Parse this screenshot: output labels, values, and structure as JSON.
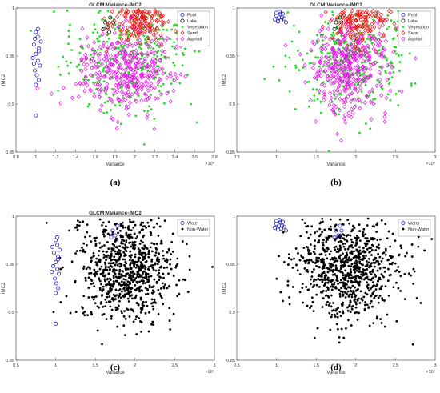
{
  "captions": [
    "(a)",
    "(b)",
    "(c)",
    "(d)"
  ],
  "chart_data": [
    {
      "type": "scatter",
      "title": "GLCM:Variance-IMC2",
      "xlabel": "Variance",
      "ylabel": "IMC2",
      "x_multiplier": "×10⁴",
      "xlim": [
        0.8,
        2.8
      ],
      "ylim": [
        0.85,
        1.0
      ],
      "xticks": [
        "0.8",
        "1",
        "1.2",
        "1.4",
        "1.6",
        "1.8",
        "2",
        "2.2",
        "2.4",
        "2.6",
        "2.8"
      ],
      "yticks": [
        "0.85",
        "0.9",
        "0.95",
        "1"
      ],
      "legend_position": "top-right",
      "series": [
        {
          "name": "Pool",
          "marker": "circle",
          "color": "#1f1fd0",
          "points": [
            [
              1.0,
              0.975
            ],
            [
              1.02,
              0.97
            ],
            [
              0.98,
              0.962
            ],
            [
              1.03,
              0.958
            ],
            [
              1.0,
              0.952
            ],
            [
              0.97,
              0.948
            ],
            [
              1.02,
              0.945
            ],
            [
              1.04,
              0.94
            ],
            [
              0.99,
              0.935
            ],
            [
              1.01,
              0.93
            ],
            [
              1.03,
              0.925
            ],
            [
              1.0,
              0.92
            ],
            [
              0.98,
              0.942
            ],
            [
              1.05,
              0.965
            ],
            [
              1.02,
              0.978
            ],
            [
              1.0,
              0.888
            ],
            [
              1.03,
              0.955
            ],
            [
              0.99,
              0.968
            ]
          ]
        },
        {
          "name": "Lake",
          "marker": "circle",
          "color": "#111111",
          "points": [
            [
              1.7,
              0.985
            ],
            [
              1.72,
              0.98
            ],
            [
              1.75,
              0.99
            ],
            [
              1.78,
              0.985
            ],
            [
              1.68,
              0.978
            ],
            [
              1.74,
              0.975
            ]
          ]
        },
        {
          "name": "Vegetation",
          "marker": "dot",
          "color": "#22dd22",
          "center": [
            1.95,
            0.945
          ],
          "spread": [
            0.3,
            0.025
          ],
          "count": 320
        },
        {
          "name": "Sand",
          "marker": "diamond",
          "color": "#ee1111",
          "center": [
            2.05,
            0.985
          ],
          "spread": [
            0.15,
            0.012
          ],
          "count": 150
        },
        {
          "name": "Asphalt",
          "marker": "diamond",
          "color": "#ee11ee",
          "center": [
            1.9,
            0.935
          ],
          "spread": [
            0.22,
            0.022
          ],
          "count": 360
        }
      ]
    },
    {
      "type": "scatter",
      "title": "GLCM:Variance-IMC2",
      "xlabel": "Variance",
      "ylabel": "IMC2",
      "x_multiplier": "×10⁴",
      "xlim": [
        0.5,
        3.0
      ],
      "ylim": [
        0.85,
        1.0
      ],
      "xticks": [
        "0.5",
        "1",
        "1.5",
        "2",
        "2.5",
        "3"
      ],
      "yticks": [
        "0.85",
        "0.9",
        "0.95",
        "1"
      ],
      "legend_position": "top-right",
      "series": [
        {
          "name": "Pool",
          "marker": "circle",
          "color": "#1f1fd0",
          "points": [
            [
              1.0,
              0.992
            ],
            [
              1.03,
              0.99
            ],
            [
              1.05,
              0.994
            ],
            [
              1.07,
              0.99
            ],
            [
              0.98,
              0.988
            ],
            [
              1.02,
              0.986
            ],
            [
              1.06,
              0.987
            ],
            [
              1.1,
              0.989
            ],
            [
              1.12,
              0.985
            ],
            [
              1.0,
              0.995
            ],
            [
              1.04,
              0.996
            ],
            [
              1.08,
              0.994
            ]
          ]
        },
        {
          "name": "Lake",
          "marker": "circle",
          "color": "#111111",
          "points": [
            [
              1.75,
              0.985
            ],
            [
              1.78,
              0.98
            ],
            [
              1.8,
              0.99
            ],
            [
              1.82,
              0.985
            ],
            [
              1.73,
              0.978
            ]
          ]
        },
        {
          "name": "Vegetation",
          "marker": "dot",
          "color": "#22dd22",
          "center": [
            1.95,
            0.945
          ],
          "spread": [
            0.35,
            0.025
          ],
          "count": 320
        },
        {
          "name": "Sand",
          "marker": "diamond",
          "color": "#ee1111",
          "center": [
            2.05,
            0.985
          ],
          "spread": [
            0.18,
            0.012
          ],
          "count": 150
        },
        {
          "name": "Asphalt",
          "marker": "diamond",
          "color": "#ee11ee",
          "center": [
            1.9,
            0.935
          ],
          "spread": [
            0.25,
            0.022
          ],
          "count": 360
        }
      ]
    },
    {
      "type": "scatter",
      "title": "GLCM:Variance-IMC2",
      "xlabel": "Variance",
      "ylabel": "IMC2",
      "x_multiplier": "×10⁴",
      "xlim": [
        0.5,
        3.0
      ],
      "ylim": [
        0.85,
        1.0
      ],
      "xticks": [
        "0.5",
        "1",
        "1.5",
        "2",
        "2.5",
        "3"
      ],
      "yticks": [
        "0.85",
        "0.9",
        "0.95",
        "1"
      ],
      "legend_position": "top-right",
      "series": [
        {
          "name": "Water",
          "marker": "circle",
          "color": "#1f1fd0",
          "points": [
            [
              1.0,
              0.975
            ],
            [
              1.02,
              0.97
            ],
            [
              0.98,
              0.962
            ],
            [
              1.03,
              0.958
            ],
            [
              1.0,
              0.952
            ],
            [
              0.97,
              0.948
            ],
            [
              1.02,
              0.945
            ],
            [
              1.04,
              0.94
            ],
            [
              0.99,
              0.935
            ],
            [
              1.01,
              0.93
            ],
            [
              1.03,
              0.925
            ],
            [
              1.0,
              0.92
            ],
            [
              0.95,
              0.942
            ],
            [
              1.05,
              0.965
            ],
            [
              1.02,
              0.978
            ],
            [
              1.0,
              0.888
            ],
            [
              1.03,
              0.955
            ],
            [
              0.96,
              0.968
            ],
            [
              1.72,
              0.985
            ],
            [
              1.75,
              0.98
            ],
            [
              1.78,
              0.99
            ],
            [
              1.7,
              0.978
            ]
          ]
        },
        {
          "name": "Non-Water",
          "marker": "dot",
          "color": "#000000",
          "center": [
            1.9,
            0.945
          ],
          "spread": [
            0.3,
            0.026
          ],
          "count": 850
        }
      ]
    },
    {
      "type": "scatter",
      "title": "",
      "xlabel": "Variance",
      "ylabel": "IMC2",
      "x_multiplier": "×10⁴",
      "xlim": [
        0.5,
        3.0
      ],
      "ylim": [
        0.85,
        1.0
      ],
      "xticks": [
        "0.5",
        "1",
        "1.5",
        "2",
        "2.5",
        "3"
      ],
      "yticks": [
        "0.85",
        "0.9",
        "0.95",
        "1"
      ],
      "legend_position": "top-right",
      "series": [
        {
          "name": "Water",
          "marker": "circle",
          "color": "#1f1fd0",
          "points": [
            [
              1.0,
              0.992
            ],
            [
              1.03,
              0.99
            ],
            [
              1.05,
              0.994
            ],
            [
              1.07,
              0.99
            ],
            [
              0.98,
              0.988
            ],
            [
              1.02,
              0.986
            ],
            [
              1.06,
              0.987
            ],
            [
              1.1,
              0.989
            ],
            [
              1.12,
              0.985
            ],
            [
              1.0,
              0.995
            ],
            [
              1.04,
              0.996
            ],
            [
              1.08,
              0.994
            ],
            [
              1.75,
              0.985
            ],
            [
              1.78,
              0.98
            ],
            [
              1.8,
              0.99
            ],
            [
              1.82,
              0.985
            ],
            [
              1.73,
              0.978
            ]
          ]
        },
        {
          "name": "Non-Water",
          "marker": "dot",
          "color": "#000000",
          "center": [
            1.9,
            0.945
          ],
          "spread": [
            0.32,
            0.026
          ],
          "count": 850
        }
      ]
    }
  ]
}
